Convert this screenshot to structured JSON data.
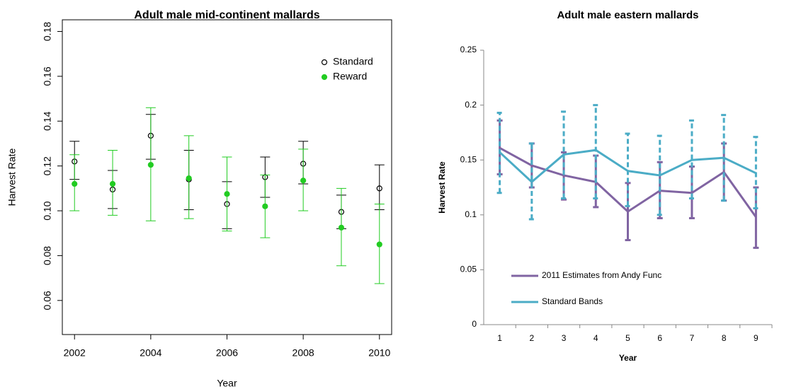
{
  "chart_data": [
    {
      "type": "scatter",
      "title": "Adult male mid-continent mallards",
      "x_label": "Year",
      "y_label": "Harvest Rate",
      "x": [
        2002,
        2003,
        2004,
        2005,
        2006,
        2007,
        2008,
        2009,
        2010
      ],
      "xlim": [
        2001.68,
        2010.32
      ],
      "xticks": [
        2002,
        2004,
        2006,
        2008,
        2010
      ],
      "ylim": [
        0.0448,
        0.1852
      ],
      "yticks": [
        0.06,
        0.08,
        {
          "value": 0.1,
          "label": "0.10"
        },
        0.12,
        0.14,
        0.16,
        0.18
      ],
      "legend": "top-right",
      "series": [
        {
          "name": "Standard",
          "color": "#000000",
          "marker": "open",
          "values": [
            0.122,
            0.1095,
            0.1335,
            0.114,
            0.103,
            0.115,
            0.121,
            0.0995,
            0.11
          ],
          "lower": [
            0.114,
            0.101,
            0.123,
            0.1005,
            0.092,
            0.106,
            0.112,
            0.092,
            0.1005
          ],
          "upper": [
            0.131,
            0.118,
            0.143,
            0.127,
            0.113,
            0.124,
            0.131,
            0.107,
            0.1205
          ]
        },
        {
          "name": "Reward",
          "color": "#22cc22",
          "marker": "filled",
          "values": [
            0.112,
            0.112,
            0.1205,
            0.1145,
            0.1075,
            0.102,
            0.1135,
            0.0925,
            0.085
          ],
          "lower": [
            0.1,
            0.098,
            0.0955,
            0.0965,
            0.091,
            0.088,
            0.1,
            0.0755,
            0.0675
          ],
          "upper": [
            0.125,
            0.127,
            0.146,
            0.1335,
            0.124,
            0.116,
            0.1275,
            0.11,
            0.103
          ]
        }
      ]
    },
    {
      "type": "line",
      "title": "Adult male eastern mallards",
      "x_label": "Year",
      "y_label": "Harvest Rate",
      "categories": [
        "1",
        "2",
        "3",
        "4",
        "5",
        "6",
        "7",
        "8",
        "9"
      ],
      "ylim": [
        0,
        0.25
      ],
      "yticks": [
        0,
        0.05,
        0.1,
        0.15,
        0.2,
        0.25
      ],
      "legend": "bottom-left",
      "series": [
        {
          "name": "2011 Estimates from Andy Func",
          "color": "#8064a2",
          "errorbar_dash": false,
          "values": [
            0.161,
            0.145,
            0.136,
            0.13,
            0.103,
            0.122,
            0.12,
            0.139,
            0.098
          ],
          "lower": [
            0.137,
            0.125,
            0.114,
            0.107,
            0.077,
            0.097,
            0.097,
            0.113,
            0.07
          ],
          "upper": [
            0.186,
            0.165,
            0.157,
            0.154,
            0.129,
            0.148,
            0.144,
            0.165,
            0.125
          ]
        },
        {
          "name": "Standard Bands",
          "color": "#4bacc6",
          "errorbar_dash": true,
          "values": [
            0.157,
            0.13,
            0.155,
            0.159,
            0.14,
            0.136,
            0.15,
            0.152,
            0.138
          ],
          "lower": [
            0.12,
            0.096,
            0.115,
            0.115,
            0.108,
            0.1,
            0.115,
            0.113,
            0.106
          ],
          "upper": [
            0.193,
            0.165,
            0.194,
            0.2,
            0.174,
            0.172,
            0.186,
            0.191,
            0.171
          ]
        }
      ]
    }
  ]
}
